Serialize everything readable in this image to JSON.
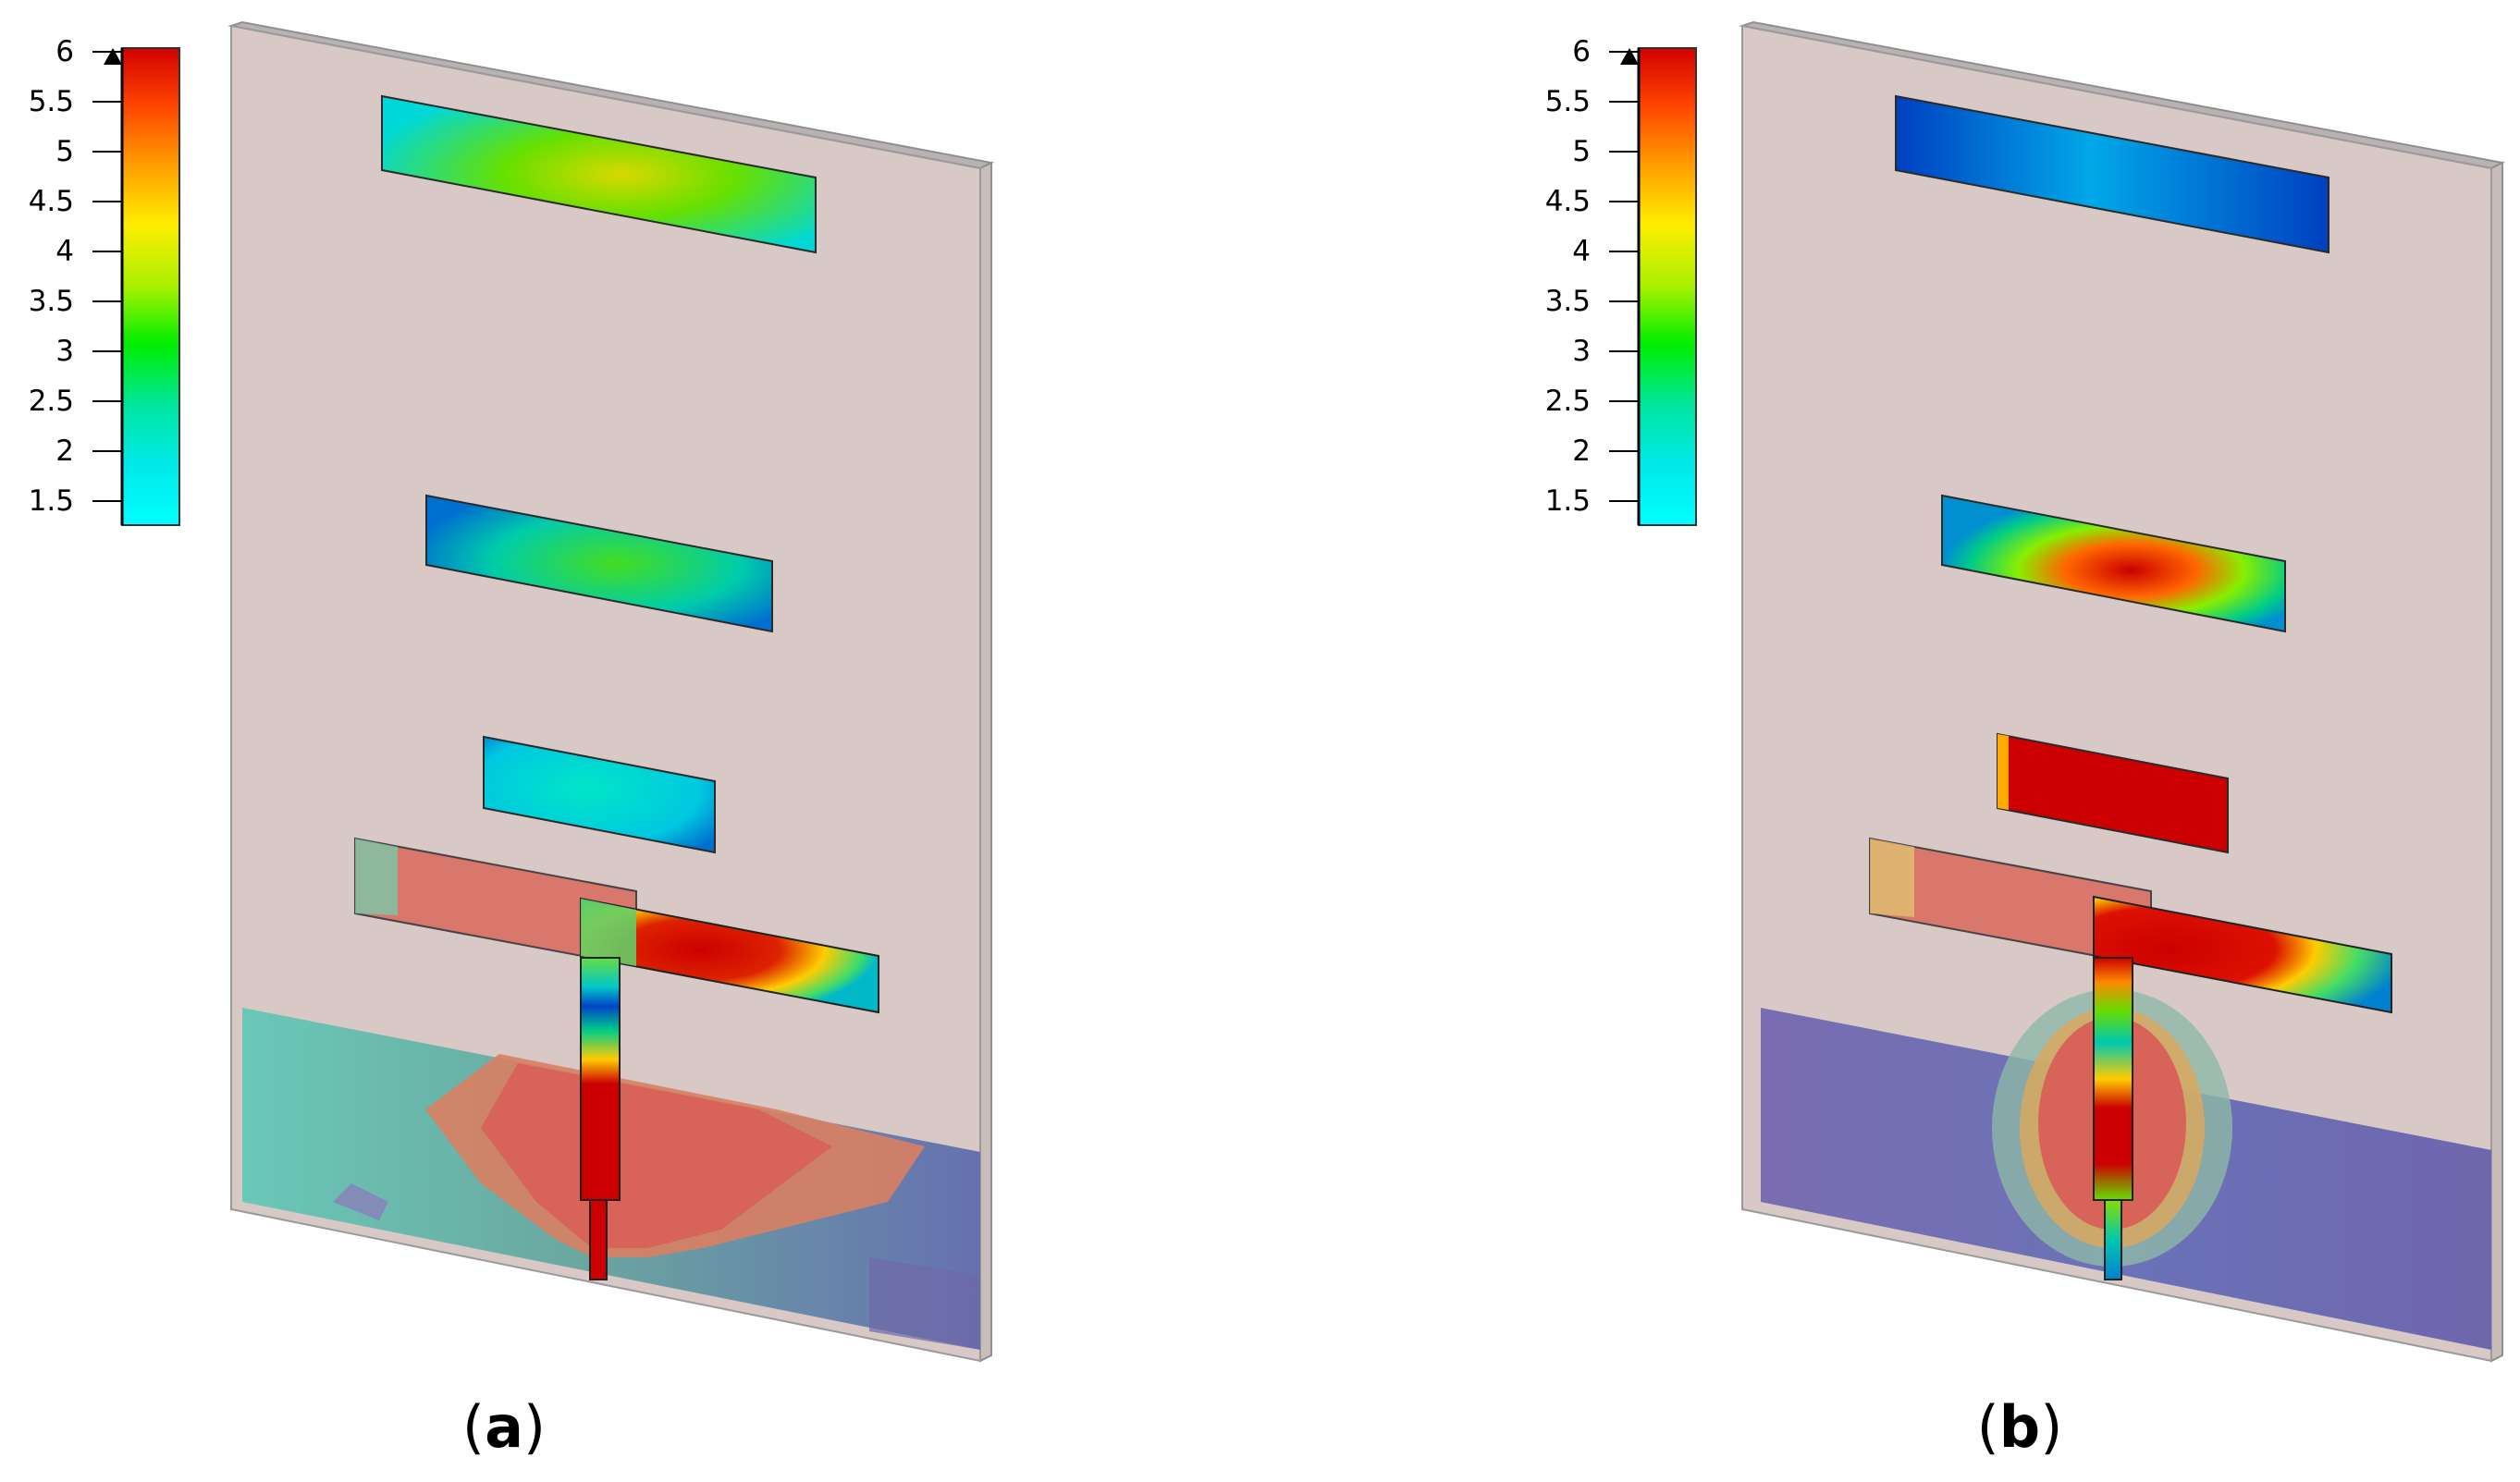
{
  "colorbar": {
    "ticks": [
      "6",
      "5.5",
      "5",
      "4.5",
      "4",
      "3.5",
      "3",
      "2.5",
      "2",
      "1.5"
    ],
    "gradient": [
      "#d40000",
      "#ff4400",
      "#ffa000",
      "#ffee00",
      "#a8f000",
      "#00ee00",
      "#00e6a0",
      "#00e8e8",
      "#00ffff"
    ]
  },
  "colors": {
    "substrate": "#d8c8c6",
    "substrate_edge": "#9a9a9a",
    "ground_blue": "#7a6cb0",
    "ground_teal": "#6cb8b0",
    "hot": "#d95f55",
    "red": "#cc0000"
  },
  "panels": [
    {
      "caption_open": "(",
      "caption_letter": "a",
      "caption_close": ")"
    },
    {
      "caption_open": "(",
      "caption_letter": "b",
      "caption_close": ")"
    }
  ]
}
